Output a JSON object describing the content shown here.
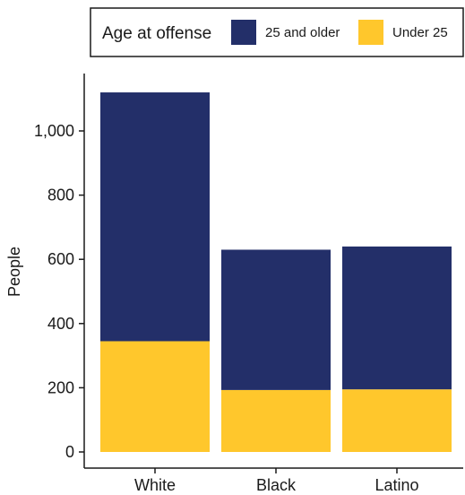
{
  "chart_data": {
    "type": "bar",
    "stacked": true,
    "title": "",
    "xlabel": "",
    "ylabel": "People",
    "categories": [
      "White",
      "Black",
      "Latino"
    ],
    "series": [
      {
        "name": "Under 25",
        "color": "#FFC72C",
        "values": [
          345,
          193,
          195
        ]
      },
      {
        "name": "25 and older",
        "color": "#232F69",
        "values": [
          775,
          437,
          445
        ]
      }
    ],
    "ylim": [
      0,
      1160
    ],
    "yticks": [
      0,
      200,
      400,
      600,
      800,
      1000
    ],
    "ytick_labels": [
      "0",
      "200",
      "400",
      "600",
      "800",
      "1,000"
    ],
    "grid": false,
    "legend": {
      "title": "Age at offense",
      "position": "top",
      "order": [
        "25 and older",
        "Under 25"
      ]
    }
  }
}
